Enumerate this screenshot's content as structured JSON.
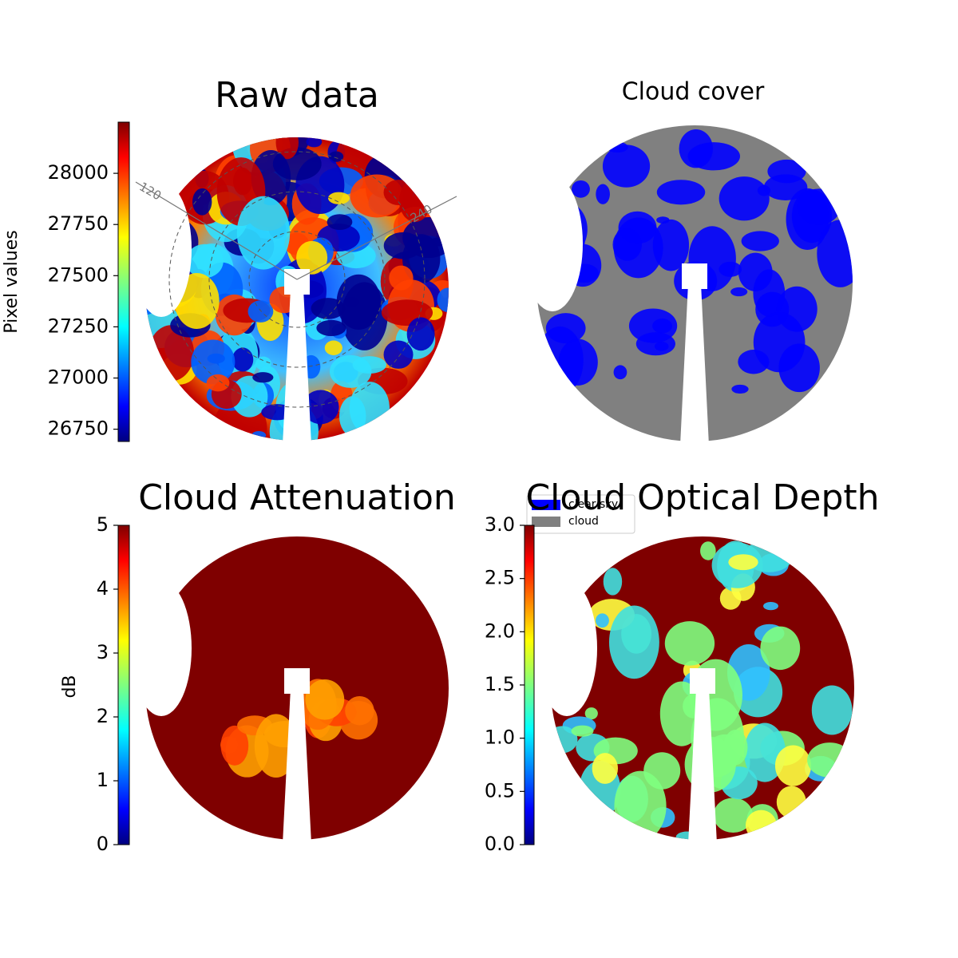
{
  "chart_data": [
    {
      "type": "image",
      "title": "Raw data",
      "colorbar_label": "Pixel values",
      "clim": [
        26690,
        28250
      ],
      "cticks": [
        26750,
        27000,
        27250,
        27500,
        27750,
        28000
      ],
      "annotations": [
        "120",
        "240"
      ]
    },
    {
      "type": "image",
      "title": "Cloud cover",
      "series": [
        {
          "name": "clear sky",
          "color": "#0000ff"
        },
        {
          "name": "cloud",
          "color": "#808080"
        }
      ]
    },
    {
      "type": "image",
      "title": "Cloud Attenuation",
      "colorbar_label": "dB",
      "clim": [
        0,
        5
      ],
      "cticks": [
        0,
        1,
        2,
        3,
        4,
        5
      ]
    },
    {
      "type": "image",
      "title": "Cloud Optical Depth",
      "clim": [
        0,
        3
      ],
      "cticks": [
        {
          "value": 0,
          "label": "0.0"
        },
        0.5,
        {
          "value": 1,
          "label": "1.0"
        },
        1.5,
        {
          "value": 2,
          "label": "2.0"
        },
        2.5,
        {
          "value": 3,
          "label": "3.0"
        }
      ]
    }
  ]
}
